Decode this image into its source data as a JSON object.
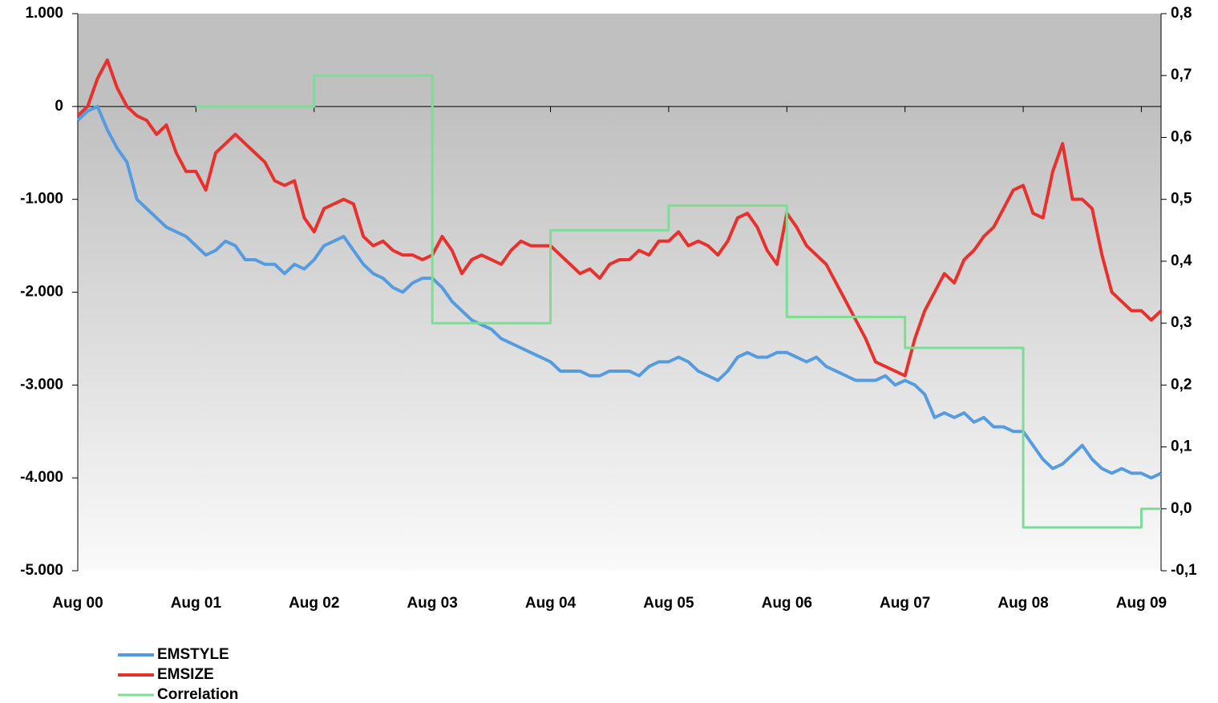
{
  "chart_data": {
    "type": "line",
    "x": [
      "2000-08",
      "2000-09",
      "2000-10",
      "2000-11",
      "2000-12",
      "2001-01",
      "2001-02",
      "2001-03",
      "2001-04",
      "2001-05",
      "2001-06",
      "2001-07",
      "2001-08",
      "2001-09",
      "2001-10",
      "2001-11",
      "2001-12",
      "2002-01",
      "2002-02",
      "2002-03",
      "2002-04",
      "2002-05",
      "2002-06",
      "2002-07",
      "2002-08",
      "2002-09",
      "2002-10",
      "2002-11",
      "2002-12",
      "2003-01",
      "2003-02",
      "2003-03",
      "2003-04",
      "2003-05",
      "2003-06",
      "2003-07",
      "2003-08",
      "2003-09",
      "2003-10",
      "2003-11",
      "2003-12",
      "2004-01",
      "2004-02",
      "2004-03",
      "2004-04",
      "2004-05",
      "2004-06",
      "2004-07",
      "2004-08",
      "2004-09",
      "2004-10",
      "2004-11",
      "2004-12",
      "2005-01",
      "2005-02",
      "2005-03",
      "2005-04",
      "2005-05",
      "2005-06",
      "2005-07",
      "2005-08",
      "2005-09",
      "2005-10",
      "2005-11",
      "2005-12",
      "2006-01",
      "2006-02",
      "2006-03",
      "2006-04",
      "2006-05",
      "2006-06",
      "2006-07",
      "2006-08",
      "2006-09",
      "2006-10",
      "2006-11",
      "2006-12",
      "2007-01",
      "2007-02",
      "2007-03",
      "2007-04",
      "2007-05",
      "2007-06",
      "2007-07",
      "2007-08",
      "2007-09",
      "2007-10",
      "2007-11",
      "2007-12",
      "2008-01",
      "2008-02",
      "2008-03",
      "2008-04",
      "2008-05",
      "2008-06",
      "2008-07",
      "2008-08",
      "2008-09",
      "2008-10",
      "2008-11",
      "2008-12",
      "2009-01",
      "2009-02",
      "2009-03",
      "2009-04",
      "2009-05",
      "2009-06",
      "2009-07",
      "2009-08",
      "2009-09",
      "2009-10"
    ],
    "series": [
      {
        "name": "EMSTYLE",
        "color": "#559be0",
        "width": 4,
        "values": [
          -150,
          -50,
          0,
          -250,
          -450,
          -600,
          -1000,
          -1100,
          -1200,
          -1300,
          -1350,
          -1400,
          -1500,
          -1600,
          -1550,
          -1450,
          -1500,
          -1650,
          -1650,
          -1700,
          -1700,
          -1800,
          -1700,
          -1750,
          -1650,
          -1500,
          -1450,
          -1400,
          -1550,
          -1700,
          -1800,
          -1850,
          -1950,
          -2000,
          -1900,
          -1850,
          -1850,
          -1950,
          -2100,
          -2200,
          -2300,
          -2350,
          -2400,
          -2500,
          -2550,
          -2600,
          -2650,
          -2700,
          -2750,
          -2850,
          -2850,
          -2850,
          -2900,
          -2900,
          -2850,
          -2850,
          -2850,
          -2900,
          -2800,
          -2750,
          -2750,
          -2700,
          -2750,
          -2850,
          -2900,
          -2950,
          -2850,
          -2700,
          -2650,
          -2700,
          -2700,
          -2650,
          -2650,
          -2700,
          -2750,
          -2700,
          -2800,
          -2850,
          -2900,
          -2950,
          -2950,
          -2950,
          -2900,
          -3000,
          -2950,
          -3000,
          -3100,
          -3350,
          -3300,
          -3350,
          -3300,
          -3400,
          -3350,
          -3450,
          -3450,
          -3500,
          -3500,
          -3650,
          -3800,
          -3900,
          -3850,
          -3750,
          -3650,
          -3800,
          -3900,
          -3950,
          -3900,
          -3950,
          -3950,
          -4000,
          -3950
        ]
      },
      {
        "name": "EMSIZE",
        "color": "#e8302c",
        "width": 4,
        "values": [
          -100,
          0,
          300,
          500,
          200,
          0,
          -100,
          -150,
          -300,
          -200,
          -500,
          -700,
          -700,
          -900,
          -500,
          -400,
          -300,
          -400,
          -500,
          -600,
          -800,
          -850,
          -800,
          -1200,
          -1350,
          -1100,
          -1050,
          -1000,
          -1050,
          -1400,
          -1500,
          -1450,
          -1550,
          -1600,
          -1600,
          -1650,
          -1600,
          -1400,
          -1550,
          -1800,
          -1650,
          -1600,
          -1650,
          -1700,
          -1550,
          -1450,
          -1500,
          -1500,
          -1500,
          -1600,
          -1700,
          -1800,
          -1750,
          -1850,
          -1700,
          -1650,
          -1650,
          -1550,
          -1600,
          -1450,
          -1450,
          -1350,
          -1500,
          -1450,
          -1500,
          -1600,
          -1450,
          -1200,
          -1150,
          -1300,
          -1550,
          -1700,
          -1150,
          -1300,
          -1500,
          -1600,
          -1700,
          -1900,
          -2100,
          -2300,
          -2500,
          -2750,
          -2800,
          -2850,
          -2900,
          -2500,
          -2200,
          -2000,
          -1800,
          -1900,
          -1650,
          -1550,
          -1400,
          -1300,
          -1100,
          -900,
          -850,
          -1150,
          -1200,
          -700,
          -400,
          -1000,
          -1000,
          -1100,
          -1600,
          -2000,
          -2100,
          -2200,
          -2200,
          -2300,
          -2200
        ]
      },
      {
        "name": "Correlation",
        "color": "#7ddc96",
        "width": 3,
        "axis": "y2",
        "step": true,
        "values": [
          null,
          null,
          null,
          null,
          null,
          null,
          null,
          null,
          null,
          null,
          null,
          null,
          0.65,
          0.65,
          0.65,
          0.65,
          0.65,
          0.65,
          0.65,
          0.65,
          0.65,
          0.65,
          0.65,
          0.65,
          0.7,
          0.7,
          0.7,
          0.7,
          0.7,
          0.7,
          0.7,
          0.7,
          0.7,
          0.7,
          0.7,
          0.7,
          0.3,
          0.3,
          0.3,
          0.3,
          0.3,
          0.3,
          0.3,
          0.3,
          0.3,
          0.3,
          0.3,
          0.3,
          0.45,
          0.45,
          0.45,
          0.45,
          0.45,
          0.45,
          0.45,
          0.45,
          0.45,
          0.45,
          0.45,
          0.45,
          0.49,
          0.49,
          0.49,
          0.49,
          0.49,
          0.49,
          0.49,
          0.49,
          0.49,
          0.49,
          0.49,
          0.49,
          0.31,
          0.31,
          0.31,
          0.31,
          0.31,
          0.31,
          0.31,
          0.31,
          0.31,
          0.31,
          0.31,
          0.31,
          0.26,
          0.26,
          0.26,
          0.26,
          0.26,
          0.26,
          0.26,
          0.26,
          0.26,
          0.26,
          0.26,
          0.26,
          -0.03,
          -0.03,
          -0.03,
          -0.03,
          -0.03,
          -0.03,
          -0.03,
          -0.03,
          -0.03,
          -0.03,
          -0.03,
          -0.03,
          0,
          0,
          0
        ]
      }
    ],
    "xlim": [
      "2000-08",
      "2009-10"
    ],
    "xticks": [
      {
        "value": "2000-08",
        "label": "Aug 00"
      },
      {
        "value": "2001-08",
        "label": "Aug 01"
      },
      {
        "value": "2002-08",
        "label": "Aug 02"
      },
      {
        "value": "2003-08",
        "label": "Aug 03"
      },
      {
        "value": "2004-08",
        "label": "Aug 04"
      },
      {
        "value": "2005-08",
        "label": "Aug 05"
      },
      {
        "value": "2006-08",
        "label": "Aug 06"
      },
      {
        "value": "2007-08",
        "label": "Aug 07"
      },
      {
        "value": "2008-08",
        "label": "Aug 08"
      },
      {
        "value": "2009-08",
        "label": "Aug 09"
      }
    ],
    "ylim": [
      -5000,
      1000
    ],
    "yticks": [
      {
        "value": 1000,
        "label": "1.000"
      },
      0,
      {
        "value": -1000,
        "label": "-1.000"
      },
      {
        "value": -2000,
        "label": "-2.000"
      },
      {
        "value": -3000,
        "label": "-3.000"
      },
      {
        "value": -4000,
        "label": "-4.000"
      },
      {
        "value": -5000,
        "label": "-5.000"
      }
    ],
    "y2lim": [
      -0.1,
      0.8
    ],
    "y2ticks": [
      {
        "value": 0.8,
        "label": "0,8"
      },
      {
        "value": 0.7,
        "label": "0,7"
      },
      {
        "value": 0.6,
        "label": "0,6"
      },
      {
        "value": 0.5,
        "label": "0,5"
      },
      {
        "value": 0.4,
        "label": "0,4"
      },
      {
        "value": 0.3,
        "label": "0,3"
      },
      {
        "value": 0.2,
        "label": "0,2"
      },
      {
        "value": 0.1,
        "label": "0,1"
      },
      {
        "value": 0,
        "label": "0,0"
      },
      {
        "value": -0.1,
        "label": "-0,1"
      }
    ],
    "legend": "bottom-left"
  }
}
